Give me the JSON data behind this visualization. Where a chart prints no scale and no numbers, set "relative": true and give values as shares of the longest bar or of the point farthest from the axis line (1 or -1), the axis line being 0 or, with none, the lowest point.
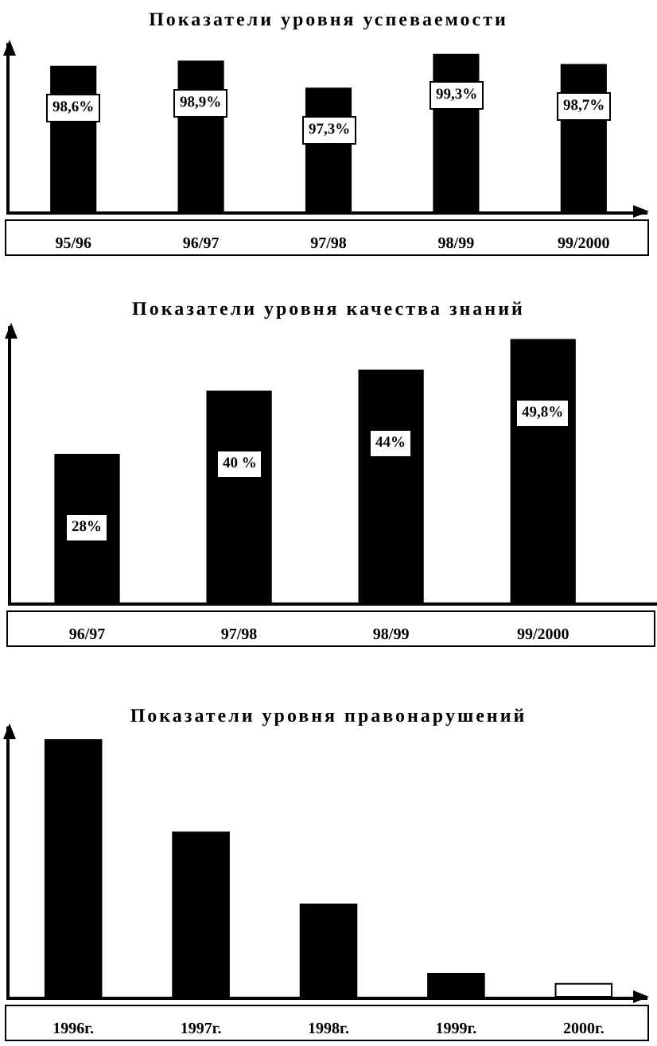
{
  "chart_data": [
    {
      "type": "bar",
      "title": "Показатели уровня успеваемости",
      "categories": [
        "95/96",
        "96/97",
        "97/98",
        "98/99",
        "99/2000"
      ],
      "values": [
        98.6,
        98.9,
        97.3,
        99.3,
        98.7
      ],
      "value_labels": [
        "98,6%",
        "98,9%",
        "97,3%",
        "99,3%",
        "98,7%"
      ],
      "color": "#000000",
      "ylim": [
        90,
        100
      ],
      "tick_labels": "x"
    },
    {
      "type": "bar",
      "title": "Показатели уровня качества знаний",
      "categories": [
        "96/97",
        "97/98",
        "98/99",
        "99/2000"
      ],
      "values": [
        28,
        40,
        44,
        49.8
      ],
      "value_labels": [
        "28%",
        "40 %",
        "44%",
        "49,8%"
      ],
      "color": "#000000",
      "tick_labels": "x"
    },
    {
      "type": "bar",
      "title": "Показатели уровня правонарушений",
      "categories": [
        "1996г.",
        "1997г.",
        "1998г.",
        "1999г.",
        "2000г."
      ],
      "values": [
        1,
        0.64,
        0.36,
        0.09,
        0.05
      ],
      "colors": [
        "#000000",
        "#000000",
        "#000000",
        "#000000",
        "#ffffff"
      ],
      "relative": true
    }
  ]
}
